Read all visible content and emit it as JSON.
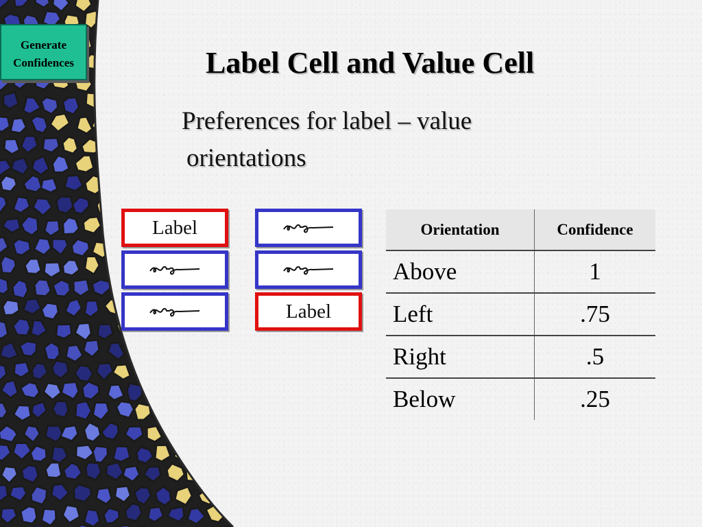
{
  "slide": {
    "title": "Label Cell and Value Cell",
    "subtitle_line1": "Preferences for label – value",
    "subtitle_line2": "orientations"
  },
  "nav_button": {
    "line1": "Generate",
    "line2": "Confidences"
  },
  "cells": {
    "label_text": "Label",
    "left_group": [
      "label",
      "value",
      "value"
    ],
    "right_group": [
      "value",
      "value",
      "label"
    ]
  },
  "table": {
    "headers": [
      "Orientation",
      "Confidence"
    ],
    "rows": [
      [
        "Above",
        "1"
      ],
      [
        "Left",
        ".75"
      ],
      [
        "Right",
        ".5"
      ],
      [
        "Below",
        ".25"
      ]
    ]
  },
  "colors": {
    "label_border": "#e01010",
    "value_border": "#3535c8",
    "button": "#1fbf93",
    "mosaic_blue": "#3c44b4",
    "mosaic_yellow": "#e8d27a"
  }
}
